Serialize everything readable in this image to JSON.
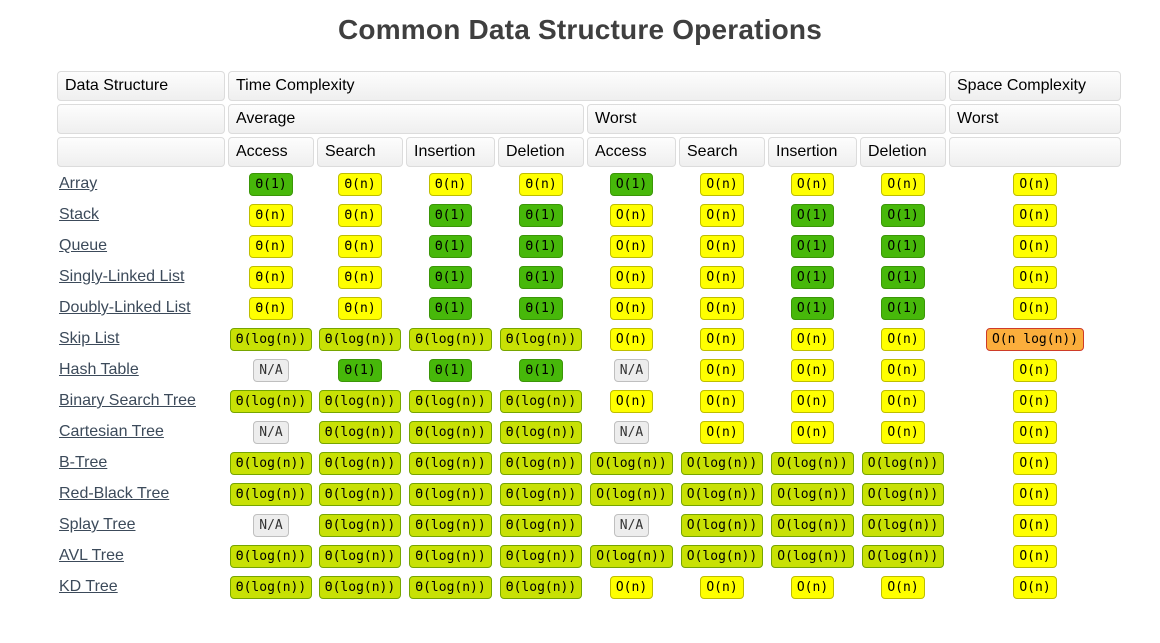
{
  "title": "Common Data Structure Operations",
  "table": {
    "header": {
      "data_structure": "Data Structure",
      "time_complexity": "Time Complexity",
      "space_complexity": "Space Complexity",
      "average": "Average",
      "worst_time": "Worst",
      "worst_space": "Worst"
    },
    "ops": [
      "Access",
      "Search",
      "Insertion",
      "Deletion",
      "Access",
      "Search",
      "Insertion",
      "Deletion"
    ],
    "palette": {
      "green": {
        "bg": "#47b80a",
        "border": "#3b9608",
        "text": "#000000"
      },
      "yellow": {
        "bg": "#ffff00",
        "border": "#bebe00",
        "text": "#000000"
      },
      "yellowgreen": {
        "bg": "#c8e105",
        "border": "#76a500",
        "text": "#000000"
      },
      "orange": {
        "bg": "#fbae3c",
        "border": "#ce3b28",
        "text": "#000000"
      },
      "na": {
        "bg": "#ededed",
        "border": "#bfbfbf",
        "text": "#333333"
      }
    },
    "rows": [
      {
        "name": "Array",
        "cells": [
          [
            "Θ(1)",
            "green"
          ],
          [
            "Θ(n)",
            "yellow"
          ],
          [
            "Θ(n)",
            "yellow"
          ],
          [
            "Θ(n)",
            "yellow"
          ],
          [
            "O(1)",
            "green"
          ],
          [
            "O(n)",
            "yellow"
          ],
          [
            "O(n)",
            "yellow"
          ],
          [
            "O(n)",
            "yellow"
          ],
          [
            "O(n)",
            "yellow"
          ]
        ]
      },
      {
        "name": "Stack",
        "cells": [
          [
            "Θ(n)",
            "yellow"
          ],
          [
            "Θ(n)",
            "yellow"
          ],
          [
            "Θ(1)",
            "green"
          ],
          [
            "Θ(1)",
            "green"
          ],
          [
            "O(n)",
            "yellow"
          ],
          [
            "O(n)",
            "yellow"
          ],
          [
            "O(1)",
            "green"
          ],
          [
            "O(1)",
            "green"
          ],
          [
            "O(n)",
            "yellow"
          ]
        ]
      },
      {
        "name": "Queue",
        "cells": [
          [
            "Θ(n)",
            "yellow"
          ],
          [
            "Θ(n)",
            "yellow"
          ],
          [
            "Θ(1)",
            "green"
          ],
          [
            "Θ(1)",
            "green"
          ],
          [
            "O(n)",
            "yellow"
          ],
          [
            "O(n)",
            "yellow"
          ],
          [
            "O(1)",
            "green"
          ],
          [
            "O(1)",
            "green"
          ],
          [
            "O(n)",
            "yellow"
          ]
        ]
      },
      {
        "name": "Singly-Linked List",
        "cells": [
          [
            "Θ(n)",
            "yellow"
          ],
          [
            "Θ(n)",
            "yellow"
          ],
          [
            "Θ(1)",
            "green"
          ],
          [
            "Θ(1)",
            "green"
          ],
          [
            "O(n)",
            "yellow"
          ],
          [
            "O(n)",
            "yellow"
          ],
          [
            "O(1)",
            "green"
          ],
          [
            "O(1)",
            "green"
          ],
          [
            "O(n)",
            "yellow"
          ]
        ]
      },
      {
        "name": "Doubly-Linked List",
        "cells": [
          [
            "Θ(n)",
            "yellow"
          ],
          [
            "Θ(n)",
            "yellow"
          ],
          [
            "Θ(1)",
            "green"
          ],
          [
            "Θ(1)",
            "green"
          ],
          [
            "O(n)",
            "yellow"
          ],
          [
            "O(n)",
            "yellow"
          ],
          [
            "O(1)",
            "green"
          ],
          [
            "O(1)",
            "green"
          ],
          [
            "O(n)",
            "yellow"
          ]
        ]
      },
      {
        "name": "Skip List",
        "cells": [
          [
            "Θ(log(n))",
            "yellowgreen"
          ],
          [
            "Θ(log(n))",
            "yellowgreen"
          ],
          [
            "Θ(log(n))",
            "yellowgreen"
          ],
          [
            "Θ(log(n))",
            "yellowgreen"
          ],
          [
            "O(n)",
            "yellow"
          ],
          [
            "O(n)",
            "yellow"
          ],
          [
            "O(n)",
            "yellow"
          ],
          [
            "O(n)",
            "yellow"
          ],
          [
            "O(n log(n))",
            "orange"
          ]
        ]
      },
      {
        "name": "Hash Table",
        "cells": [
          [
            "N/A",
            "na"
          ],
          [
            "Θ(1)",
            "green"
          ],
          [
            "Θ(1)",
            "green"
          ],
          [
            "Θ(1)",
            "green"
          ],
          [
            "N/A",
            "na"
          ],
          [
            "O(n)",
            "yellow"
          ],
          [
            "O(n)",
            "yellow"
          ],
          [
            "O(n)",
            "yellow"
          ],
          [
            "O(n)",
            "yellow"
          ]
        ]
      },
      {
        "name": "Binary Search Tree",
        "cells": [
          [
            "Θ(log(n))",
            "yellowgreen"
          ],
          [
            "Θ(log(n))",
            "yellowgreen"
          ],
          [
            "Θ(log(n))",
            "yellowgreen"
          ],
          [
            "Θ(log(n))",
            "yellowgreen"
          ],
          [
            "O(n)",
            "yellow"
          ],
          [
            "O(n)",
            "yellow"
          ],
          [
            "O(n)",
            "yellow"
          ],
          [
            "O(n)",
            "yellow"
          ],
          [
            "O(n)",
            "yellow"
          ]
        ]
      },
      {
        "name": "Cartesian Tree",
        "cells": [
          [
            "N/A",
            "na"
          ],
          [
            "Θ(log(n))",
            "yellowgreen"
          ],
          [
            "Θ(log(n))",
            "yellowgreen"
          ],
          [
            "Θ(log(n))",
            "yellowgreen"
          ],
          [
            "N/A",
            "na"
          ],
          [
            "O(n)",
            "yellow"
          ],
          [
            "O(n)",
            "yellow"
          ],
          [
            "O(n)",
            "yellow"
          ],
          [
            "O(n)",
            "yellow"
          ]
        ]
      },
      {
        "name": "B-Tree",
        "cells": [
          [
            "Θ(log(n))",
            "yellowgreen"
          ],
          [
            "Θ(log(n))",
            "yellowgreen"
          ],
          [
            "Θ(log(n))",
            "yellowgreen"
          ],
          [
            "Θ(log(n))",
            "yellowgreen"
          ],
          [
            "O(log(n))",
            "yellowgreen"
          ],
          [
            "O(log(n))",
            "yellowgreen"
          ],
          [
            "O(log(n))",
            "yellowgreen"
          ],
          [
            "O(log(n))",
            "yellowgreen"
          ],
          [
            "O(n)",
            "yellow"
          ]
        ]
      },
      {
        "name": "Red-Black Tree",
        "cells": [
          [
            "Θ(log(n))",
            "yellowgreen"
          ],
          [
            "Θ(log(n))",
            "yellowgreen"
          ],
          [
            "Θ(log(n))",
            "yellowgreen"
          ],
          [
            "Θ(log(n))",
            "yellowgreen"
          ],
          [
            "O(log(n))",
            "yellowgreen"
          ],
          [
            "O(log(n))",
            "yellowgreen"
          ],
          [
            "O(log(n))",
            "yellowgreen"
          ],
          [
            "O(log(n))",
            "yellowgreen"
          ],
          [
            "O(n)",
            "yellow"
          ]
        ]
      },
      {
        "name": "Splay Tree",
        "cells": [
          [
            "N/A",
            "na"
          ],
          [
            "Θ(log(n))",
            "yellowgreen"
          ],
          [
            "Θ(log(n))",
            "yellowgreen"
          ],
          [
            "Θ(log(n))",
            "yellowgreen"
          ],
          [
            "N/A",
            "na"
          ],
          [
            "O(log(n))",
            "yellowgreen"
          ],
          [
            "O(log(n))",
            "yellowgreen"
          ],
          [
            "O(log(n))",
            "yellowgreen"
          ],
          [
            "O(n)",
            "yellow"
          ]
        ]
      },
      {
        "name": "AVL Tree",
        "cells": [
          [
            "Θ(log(n))",
            "yellowgreen"
          ],
          [
            "Θ(log(n))",
            "yellowgreen"
          ],
          [
            "Θ(log(n))",
            "yellowgreen"
          ],
          [
            "Θ(log(n))",
            "yellowgreen"
          ],
          [
            "O(log(n))",
            "yellowgreen"
          ],
          [
            "O(log(n))",
            "yellowgreen"
          ],
          [
            "O(log(n))",
            "yellowgreen"
          ],
          [
            "O(log(n))",
            "yellowgreen"
          ],
          [
            "O(n)",
            "yellow"
          ]
        ]
      },
      {
        "name": "KD Tree",
        "cells": [
          [
            "Θ(log(n))",
            "yellowgreen"
          ],
          [
            "Θ(log(n))",
            "yellowgreen"
          ],
          [
            "Θ(log(n))",
            "yellowgreen"
          ],
          [
            "Θ(log(n))",
            "yellowgreen"
          ],
          [
            "O(n)",
            "yellow"
          ],
          [
            "O(n)",
            "yellow"
          ],
          [
            "O(n)",
            "yellow"
          ],
          [
            "O(n)",
            "yellow"
          ],
          [
            "O(n)",
            "yellow"
          ]
        ]
      }
    ]
  }
}
